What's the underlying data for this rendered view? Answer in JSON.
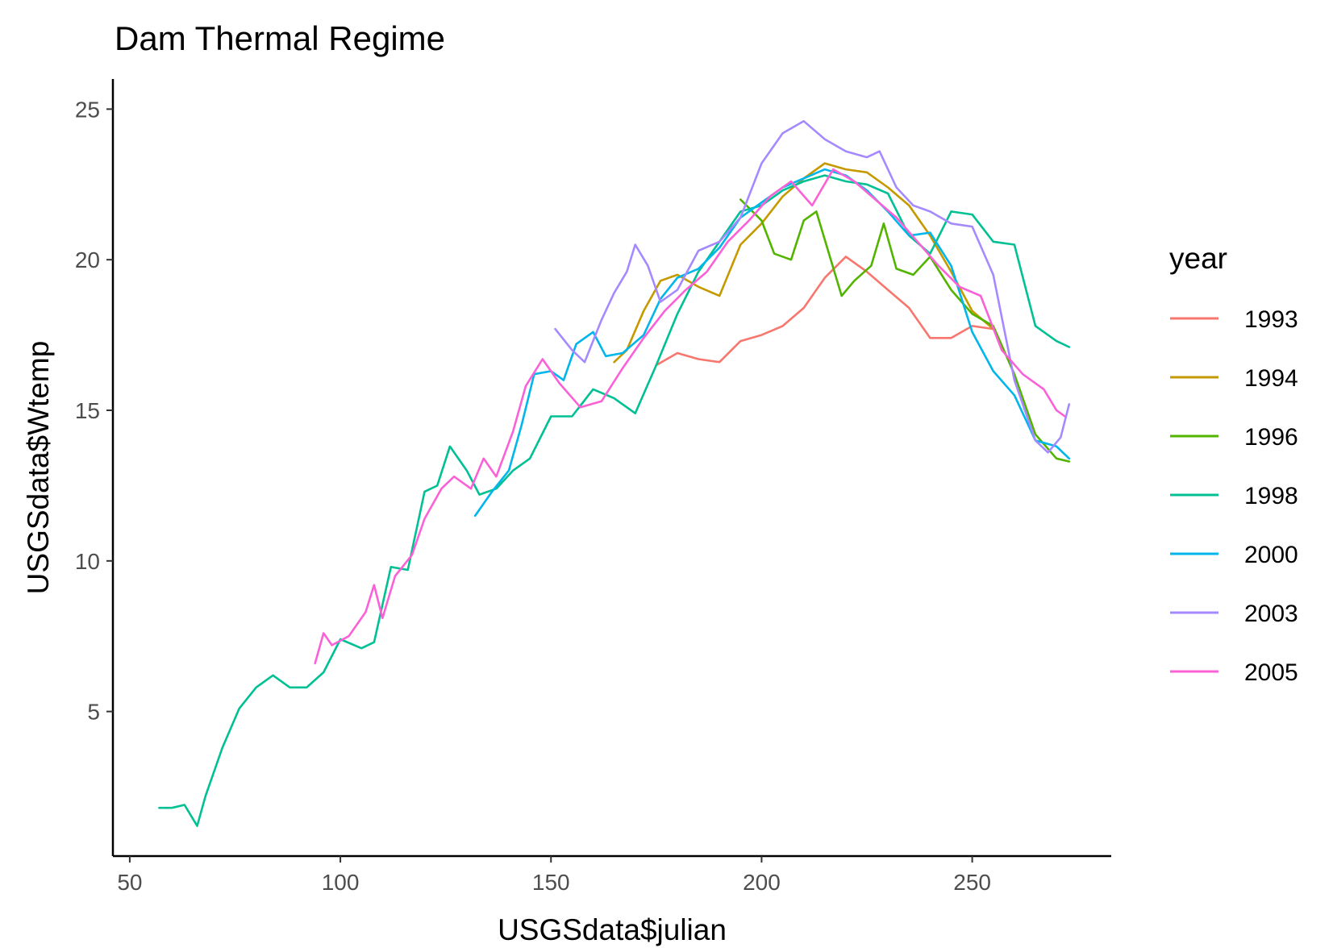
{
  "chart_data": {
    "type": "line",
    "title": "Dam Thermal Regime",
    "xlabel": "USGSdata$julian",
    "ylabel": "USGSdata$Wtemp",
    "xlim": [
      46,
      283
    ],
    "ylim": [
      0.2,
      26
    ],
    "xticks": [
      50,
      100,
      150,
      200,
      250
    ],
    "yticks": [
      5,
      10,
      15,
      20,
      25
    ],
    "grid": false,
    "legend": {
      "title": "year",
      "position": "right"
    },
    "series": [
      {
        "name": "1993",
        "color": "#F8766D",
        "points": [
          [
            175,
            16.5
          ],
          [
            180,
            16.9
          ],
          [
            185,
            16.7
          ],
          [
            190,
            16.6
          ],
          [
            195,
            17.3
          ],
          [
            200,
            17.5
          ],
          [
            205,
            17.8
          ],
          [
            210,
            18.4
          ],
          [
            215,
            19.4
          ],
          [
            220,
            20.1
          ],
          [
            225,
            19.6
          ],
          [
            230,
            19.0
          ],
          [
            235,
            18.4
          ],
          [
            240,
            17.4
          ],
          [
            245,
            17.4
          ],
          [
            250,
            17.8
          ],
          [
            255,
            17.7
          ]
        ]
      },
      {
        "name": "1994",
        "color": "#C49A00",
        "points": [
          [
            165,
            16.6
          ],
          [
            168,
            17.0
          ],
          [
            172,
            18.3
          ],
          [
            176,
            19.3
          ],
          [
            180,
            19.5
          ],
          [
            185,
            19.1
          ],
          [
            190,
            18.8
          ],
          [
            195,
            20.5
          ],
          [
            200,
            21.2
          ],
          [
            205,
            22.1
          ],
          [
            210,
            22.7
          ],
          [
            215,
            23.2
          ],
          [
            220,
            23.0
          ],
          [
            225,
            22.9
          ],
          [
            230,
            22.4
          ],
          [
            235,
            21.8
          ],
          [
            240,
            20.8
          ],
          [
            245,
            19.6
          ],
          [
            250,
            18.3
          ],
          [
            255,
            17.7
          ]
        ]
      },
      {
        "name": "1996",
        "color": "#53B400",
        "points": [
          [
            195,
            22.0
          ],
          [
            200,
            21.3
          ],
          [
            203,
            20.2
          ],
          [
            207,
            20.0
          ],
          [
            210,
            21.3
          ],
          [
            213,
            21.6
          ],
          [
            216,
            20.2
          ],
          [
            219,
            18.8
          ],
          [
            222,
            19.3
          ],
          [
            226,
            19.8
          ],
          [
            229,
            21.2
          ],
          [
            232,
            19.7
          ],
          [
            236,
            19.5
          ],
          [
            240,
            20.1
          ],
          [
            245,
            19.0
          ],
          [
            250,
            18.2
          ],
          [
            255,
            17.8
          ],
          [
            260,
            16.2
          ],
          [
            265,
            14.2
          ],
          [
            270,
            13.4
          ],
          [
            273,
            13.3
          ]
        ]
      },
      {
        "name": "1998",
        "color": "#00C094",
        "points": [
          [
            57,
            1.8
          ],
          [
            60,
            1.8
          ],
          [
            63,
            1.9
          ],
          [
            66,
            1.2
          ],
          [
            68,
            2.2
          ],
          [
            72,
            3.8
          ],
          [
            76,
            5.1
          ],
          [
            80,
            5.8
          ],
          [
            84,
            6.2
          ],
          [
            88,
            5.8
          ],
          [
            92,
            5.8
          ],
          [
            96,
            6.3
          ],
          [
            100,
            7.4
          ],
          [
            105,
            7.1
          ],
          [
            108,
            7.3
          ],
          [
            112,
            9.8
          ],
          [
            116,
            9.7
          ],
          [
            120,
            12.3
          ],
          [
            123,
            12.5
          ],
          [
            126,
            13.8
          ],
          [
            130,
            13.0
          ],
          [
            133,
            12.2
          ],
          [
            137,
            12.4
          ],
          [
            141,
            13.0
          ],
          [
            145,
            13.4
          ],
          [
            150,
            14.8
          ],
          [
            155,
            14.8
          ],
          [
            160,
            15.7
          ],
          [
            165,
            15.4
          ],
          [
            170,
            14.9
          ],
          [
            175,
            16.5
          ],
          [
            180,
            18.2
          ],
          [
            185,
            19.6
          ],
          [
            190,
            20.6
          ],
          [
            195,
            21.6
          ],
          [
            200,
            21.8
          ],
          [
            205,
            22.3
          ],
          [
            210,
            22.6
          ],
          [
            215,
            22.8
          ],
          [
            220,
            22.6
          ],
          [
            225,
            22.5
          ],
          [
            230,
            22.2
          ],
          [
            235,
            20.8
          ],
          [
            240,
            20.2
          ],
          [
            245,
            21.6
          ],
          [
            250,
            21.5
          ],
          [
            255,
            20.6
          ],
          [
            260,
            20.5
          ],
          [
            265,
            17.8
          ],
          [
            270,
            17.3
          ],
          [
            273,
            17.1
          ]
        ]
      },
      {
        "name": "2000",
        "color": "#00B6EB",
        "points": [
          [
            132,
            11.5
          ],
          [
            136,
            12.3
          ],
          [
            140,
            13.0
          ],
          [
            143,
            14.5
          ],
          [
            146,
            16.2
          ],
          [
            150,
            16.3
          ],
          [
            153,
            16.0
          ],
          [
            156,
            17.2
          ],
          [
            160,
            17.6
          ],
          [
            163,
            16.8
          ],
          [
            167,
            16.9
          ],
          [
            172,
            17.5
          ],
          [
            176,
            18.7
          ],
          [
            180,
            19.4
          ],
          [
            185,
            19.7
          ],
          [
            190,
            20.4
          ],
          [
            195,
            21.4
          ],
          [
            200,
            21.9
          ],
          [
            205,
            22.4
          ],
          [
            210,
            22.7
          ],
          [
            215,
            23.0
          ],
          [
            220,
            22.8
          ],
          [
            225,
            22.3
          ],
          [
            230,
            21.6
          ],
          [
            235,
            20.8
          ],
          [
            240,
            20.9
          ],
          [
            245,
            19.8
          ],
          [
            250,
            17.6
          ],
          [
            255,
            16.3
          ],
          [
            260,
            15.5
          ],
          [
            265,
            14.0
          ],
          [
            270,
            13.8
          ],
          [
            273,
            13.4
          ]
        ]
      },
      {
        "name": "2003",
        "color": "#A58AFF",
        "points": [
          [
            151,
            17.7
          ],
          [
            155,
            17.0
          ],
          [
            158,
            16.6
          ],
          [
            162,
            18.0
          ],
          [
            165,
            18.9
          ],
          [
            168,
            19.6
          ],
          [
            170,
            20.5
          ],
          [
            173,
            19.8
          ],
          [
            176,
            18.6
          ],
          [
            180,
            19.0
          ],
          [
            185,
            20.3
          ],
          [
            190,
            20.6
          ],
          [
            195,
            21.4
          ],
          [
            200,
            23.2
          ],
          [
            205,
            24.2
          ],
          [
            210,
            24.6
          ],
          [
            215,
            24.0
          ],
          [
            220,
            23.6
          ],
          [
            225,
            23.4
          ],
          [
            228,
            23.6
          ],
          [
            232,
            22.4
          ],
          [
            236,
            21.8
          ],
          [
            240,
            21.6
          ],
          [
            245,
            21.2
          ],
          [
            250,
            21.1
          ],
          [
            255,
            19.5
          ],
          [
            260,
            16.0
          ],
          [
            265,
            14.0
          ],
          [
            268,
            13.6
          ],
          [
            271,
            14.1
          ],
          [
            273,
            15.2
          ]
        ]
      },
      {
        "name": "2005",
        "color": "#FB61D7",
        "points": [
          [
            94,
            6.6
          ],
          [
            96,
            7.6
          ],
          [
            98,
            7.2
          ],
          [
            102,
            7.5
          ],
          [
            106,
            8.3
          ],
          [
            108,
            9.2
          ],
          [
            110,
            8.1
          ],
          [
            113,
            9.5
          ],
          [
            117,
            10.2
          ],
          [
            120,
            11.4
          ],
          [
            124,
            12.4
          ],
          [
            127,
            12.8
          ],
          [
            131,
            12.4
          ],
          [
            134,
            13.4
          ],
          [
            137,
            12.8
          ],
          [
            141,
            14.3
          ],
          [
            144,
            15.8
          ],
          [
            148,
            16.7
          ],
          [
            152,
            15.9
          ],
          [
            157,
            15.1
          ],
          [
            162,
            15.3
          ],
          [
            167,
            16.4
          ],
          [
            172,
            17.4
          ],
          [
            177,
            18.3
          ],
          [
            182,
            19.0
          ],
          [
            187,
            19.6
          ],
          [
            192,
            20.6
          ],
          [
            197,
            21.3
          ],
          [
            202,
            22.1
          ],
          [
            207,
            22.6
          ],
          [
            212,
            21.8
          ],
          [
            217,
            23.0
          ],
          [
            222,
            22.6
          ],
          [
            227,
            22.0
          ],
          [
            232,
            21.4
          ],
          [
            237,
            20.6
          ],
          [
            242,
            19.8
          ],
          [
            247,
            19.1
          ],
          [
            252,
            18.8
          ],
          [
            257,
            17.0
          ],
          [
            262,
            16.2
          ],
          [
            267,
            15.7
          ],
          [
            270,
            15.0
          ],
          [
            272,
            14.8
          ]
        ]
      }
    ]
  }
}
